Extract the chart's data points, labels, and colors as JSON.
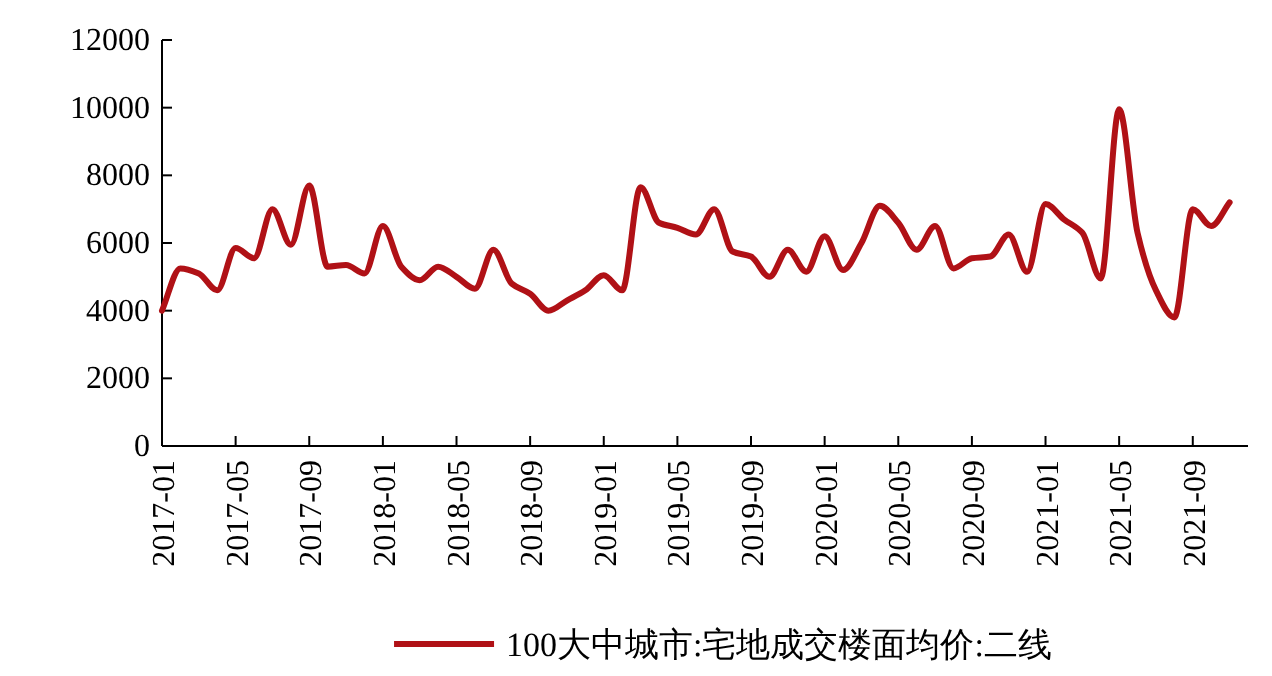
{
  "chart_data": {
    "type": "line",
    "x": [
      "2017-01",
      "2017-02",
      "2017-03",
      "2017-04",
      "2017-05",
      "2017-06",
      "2017-07",
      "2017-08",
      "2017-09",
      "2017-10",
      "2017-11",
      "2017-12",
      "2018-01",
      "2018-02",
      "2018-03",
      "2018-04",
      "2018-05",
      "2018-06",
      "2018-07",
      "2018-08",
      "2018-09",
      "2018-10",
      "2018-11",
      "2018-12",
      "2019-01",
      "2019-02",
      "2019-03",
      "2019-04",
      "2019-05",
      "2019-06",
      "2019-07",
      "2019-08",
      "2019-09",
      "2019-10",
      "2019-11",
      "2019-12",
      "2020-01",
      "2020-02",
      "2020-03",
      "2020-04",
      "2020-05",
      "2020-06",
      "2020-07",
      "2020-08",
      "2020-09",
      "2020-10",
      "2020-11",
      "2020-12",
      "2021-01",
      "2021-02",
      "2021-03",
      "2021-04",
      "2021-05",
      "2021-06",
      "2021-07",
      "2021-08",
      "2021-09",
      "2021-10",
      "2021-11"
    ],
    "series": [
      {
        "name": "100大中城市:宅地成交楼面均价:二线",
        "color": "#b01116",
        "values": [
          4000,
          5250,
          5100,
          4600,
          5850,
          5550,
          7000,
          5950,
          7700,
          5300,
          5350,
          5100,
          6500,
          5300,
          4900,
          5300,
          5000,
          4650,
          5800,
          4800,
          4500,
          4000,
          4300,
          4600,
          5050,
          4600,
          7650,
          6600,
          6450,
          6250,
          7000,
          5750,
          5600,
          5000,
          5800,
          5150,
          6200,
          5200,
          6000,
          7100,
          6600,
          5800,
          6500,
          5250,
          5550,
          5600,
          6250,
          5150,
          7150,
          6700,
          6300,
          4950,
          9950,
          6300,
          4600,
          3800,
          7000,
          6500,
          7200
        ]
      }
    ],
    "xlim": [
      "2017-01",
      "2021-12"
    ],
    "xticks": [
      "2017-01",
      "2017-05",
      "2017-09",
      "2018-01",
      "2018-05",
      "2018-09",
      "2019-01",
      "2019-05",
      "2019-09",
      "2020-01",
      "2020-05",
      "2020-09",
      "2021-01",
      "2021-05",
      "2021-09"
    ],
    "ylim": [
      0,
      12000
    ],
    "yticks": [
      0,
      2000,
      4000,
      6000,
      8000,
      10000,
      12000
    ],
    "grid": false,
    "legend": "bottom"
  }
}
